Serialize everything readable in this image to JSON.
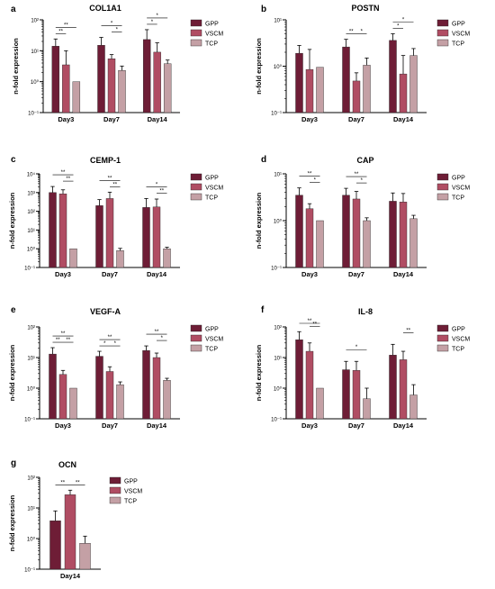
{
  "colors": {
    "GPP": "#6e1d36",
    "VSCM": "#b04d63",
    "TCP": "#c4a0a5"
  },
  "chart_data": [
    {
      "letter": "a",
      "title": "COL1A1",
      "type": "bar",
      "yscale": "log",
      "ylabel": "n-fold expression",
      "yticks": [
        {
          "value": 0.1,
          "label": "10⁻¹"
        },
        {
          "value": 1,
          "label": "10⁰"
        },
        {
          "value": 10,
          "label": "10¹"
        },
        {
          "value": 100,
          "label": "10²"
        }
      ],
      "ylim": [
        0.1,
        100
      ],
      "categories": [
        "Day3",
        "Day7",
        "Day14"
      ],
      "legend": [
        "GPP",
        "VSCM",
        "TCP"
      ],
      "series": [
        {
          "name": "GPP",
          "values": [
            14,
            15,
            23
          ],
          "errors": [
            24,
            27,
            48
          ]
        },
        {
          "name": "VSCM",
          "values": [
            3.5,
            5.5,
            9
          ],
          "errors": [
            10,
            7.5,
            18
          ]
        },
        {
          "name": "TCP",
          "values": [
            1,
            2.3,
            3.8
          ],
          "errors": [
            null,
            3.2,
            5
          ]
        }
      ],
      "annotations": [
        {
          "group": 0,
          "from": 0,
          "to": 1,
          "level": 1,
          "label": "**"
        },
        {
          "group": 0,
          "from": 0,
          "to": 2,
          "level": 2,
          "label": "**"
        },
        {
          "group": 1,
          "from": 0,
          "to": 2,
          "level": 2,
          "label": "*"
        },
        {
          "group": 1,
          "from": 1,
          "to": 2,
          "level": 1,
          "label": "*"
        },
        {
          "group": 2,
          "from": 0,
          "to": 1,
          "level": 1,
          "label": "*"
        },
        {
          "group": 2,
          "from": 0,
          "to": 2,
          "level": 2,
          "label": "*"
        }
      ]
    },
    {
      "letter": "b",
      "title": "POSTN",
      "type": "bar",
      "yscale": "log",
      "ylabel": "n-fold expression",
      "yticks": [
        {
          "value": 0.1,
          "label": "10⁻¹"
        },
        {
          "value": 1,
          "label": "10⁰"
        },
        {
          "value": 10,
          "label": "10¹"
        }
      ],
      "ylim": [
        0.1,
        10
      ],
      "categories": [
        "Day3",
        "Day7",
        "Day14"
      ],
      "legend": [
        "GPP",
        "VSCM",
        "TCP"
      ],
      "series": [
        {
          "name": "GPP",
          "values": [
            1.9,
            2.6,
            3.6
          ],
          "errors": [
            2.8,
            3.8,
            5
          ]
        },
        {
          "name": "VSCM",
          "values": [
            0.85,
            0.48,
            0.68
          ],
          "errors": [
            2.3,
            0.72,
            1.7
          ]
        },
        {
          "name": "TCP",
          "values": [
            0.95,
            1.05,
            1.7
          ],
          "errors": [
            null,
            1.5,
            2.4
          ]
        }
      ],
      "annotations": [
        {
          "group": 1,
          "from": 0,
          "to": 1,
          "level": 1,
          "label": "**"
        },
        {
          "group": 1,
          "from": 1,
          "to": 2,
          "level": 1,
          "label": "*"
        },
        {
          "group": 2,
          "from": 0,
          "to": 1,
          "level": 1,
          "label": "*"
        },
        {
          "group": 2,
          "from": 0,
          "to": 2,
          "level": 2,
          "label": "*"
        }
      ]
    },
    {
      "letter": "c",
      "title": "CEMP-1",
      "type": "bar",
      "yscale": "log",
      "ylabel": "n-fold expression",
      "yticks": [
        {
          "value": 0.1,
          "label": "10⁻¹"
        },
        {
          "value": 1,
          "label": "10⁰"
        },
        {
          "value": 10,
          "label": "10¹"
        },
        {
          "value": 100,
          "label": "10²"
        },
        {
          "value": 1000,
          "label": "10³"
        },
        {
          "value": 10000,
          "label": "10⁴"
        }
      ],
      "ylim": [
        0.1,
        10000
      ],
      "categories": [
        "Day3",
        "Day7",
        "Day14"
      ],
      "legend": [
        "GPP",
        "VSCM",
        "TCP"
      ],
      "series": [
        {
          "name": "GPP",
          "values": [
            1000,
            200,
            160
          ],
          "errors": [
            2100,
            420,
            480
          ]
        },
        {
          "name": "VSCM",
          "values": [
            850,
            480,
            170
          ],
          "errors": [
            1400,
            1050,
            450
          ]
        },
        {
          "name": "TCP",
          "values": [
            1,
            0.8,
            1
          ],
          "errors": [
            null,
            1.05,
            1.2
          ]
        }
      ],
      "annotations": [
        {
          "group": 0,
          "from": 0,
          "to": 2,
          "level": 2,
          "label": "**"
        },
        {
          "group": 0,
          "from": 1,
          "to": 2,
          "level": 1,
          "label": "**"
        },
        {
          "group": 1,
          "from": 0,
          "to": 2,
          "level": 2,
          "label": "**"
        },
        {
          "group": 1,
          "from": 1,
          "to": 2,
          "level": 1,
          "label": "**"
        },
        {
          "group": 2,
          "from": 0,
          "to": 2,
          "level": 2,
          "label": "*"
        },
        {
          "group": 2,
          "from": 1,
          "to": 2,
          "level": 1,
          "label": "**"
        }
      ]
    },
    {
      "letter": "d",
      "title": "CAP",
      "type": "bar",
      "yscale": "log",
      "ylabel": "n-fold expression",
      "yticks": [
        {
          "value": 0.1,
          "label": "10⁻¹"
        },
        {
          "value": 1,
          "label": "10⁰"
        },
        {
          "value": 10,
          "label": "10¹"
        }
      ],
      "ylim": [
        0.1,
        10
      ],
      "categories": [
        "Day3",
        "Day7",
        "Day14"
      ],
      "legend": [
        "GPP",
        "VSCM",
        "TCP"
      ],
      "series": [
        {
          "name": "GPP",
          "values": [
            3.5,
            3.5,
            2.6
          ],
          "errors": [
            5,
            4.9,
            3.9
          ]
        },
        {
          "name": "VSCM",
          "values": [
            1.8,
            2.9,
            2.5
          ],
          "errors": [
            2.3,
            4.2,
            3.8
          ]
        },
        {
          "name": "TCP",
          "values": [
            1,
            1,
            1.1
          ],
          "errors": [
            null,
            1.15,
            1.3
          ]
        }
      ],
      "annotations": [
        {
          "group": 0,
          "from": 0,
          "to": 2,
          "level": 2,
          "label": "**"
        },
        {
          "group": 0,
          "from": 1,
          "to": 2,
          "level": 1,
          "label": "*"
        },
        {
          "group": 1,
          "from": 0,
          "to": 2,
          "level": 2,
          "label": "**"
        },
        {
          "group": 1,
          "from": 1,
          "to": 2,
          "level": 1,
          "label": "*"
        }
      ]
    },
    {
      "letter": "e",
      "title": "VEGF-A",
      "type": "bar",
      "yscale": "log",
      "ylabel": "n-fold expression",
      "yticks": [
        {
          "value": 0.1,
          "label": "10⁻¹"
        },
        {
          "value": 1,
          "label": "10⁰"
        },
        {
          "value": 10,
          "label": "10¹"
        },
        {
          "value": 100,
          "label": "10²"
        }
      ],
      "ylim": [
        0.1,
        100
      ],
      "categories": [
        "Day3",
        "Day7",
        "Day14"
      ],
      "legend": [
        "GPP",
        "VSCM",
        "TCP"
      ],
      "series": [
        {
          "name": "GPP",
          "values": [
            13,
            11,
            17
          ],
          "errors": [
            21,
            16,
            24
          ]
        },
        {
          "name": "VSCM",
          "values": [
            2.8,
            3.5,
            10
          ],
          "errors": [
            3.8,
            5,
            14
          ]
        },
        {
          "name": "TCP",
          "values": [
            1,
            1.3,
            1.8
          ],
          "errors": [
            null,
            1.6,
            2.1
          ]
        }
      ],
      "annotations": [
        {
          "group": 0,
          "from": 0,
          "to": 1,
          "level": 1,
          "label": "**"
        },
        {
          "group": 0,
          "from": 0,
          "to": 2,
          "level": 2,
          "label": "**"
        },
        {
          "group": 0,
          "from": 1,
          "to": 2,
          "level": 1,
          "label": "**"
        },
        {
          "group": 1,
          "from": 0,
          "to": 1,
          "level": 1,
          "label": "*"
        },
        {
          "group": 1,
          "from": 0,
          "to": 2,
          "level": 2,
          "label": "**"
        },
        {
          "group": 1,
          "from": 1,
          "to": 2,
          "level": 1,
          "label": "*"
        },
        {
          "group": 2,
          "from": 0,
          "to": 2,
          "level": 2,
          "label": "**"
        },
        {
          "group": 2,
          "from": 1,
          "to": 2,
          "level": 1,
          "label": "*"
        }
      ]
    },
    {
      "letter": "f",
      "title": "IL-8",
      "type": "bar",
      "yscale": "log",
      "ylabel": "n-fold expression",
      "yticks": [
        {
          "value": 0.1,
          "label": "10⁻¹"
        },
        {
          "value": 1,
          "label": "10⁰"
        },
        {
          "value": 10,
          "label": "10¹"
        },
        {
          "value": 100,
          "label": "10²"
        }
      ],
      "ylim": [
        0.1,
        100
      ],
      "categories": [
        "Day3",
        "Day7",
        "Day14"
      ],
      "legend": [
        "GPP",
        "VSCM",
        "TCP"
      ],
      "series": [
        {
          "name": "GPP",
          "values": [
            38,
            4,
            12
          ],
          "errors": [
            70,
            7.5,
            27
          ]
        },
        {
          "name": "VSCM",
          "values": [
            16,
            3.8,
            8.5
          ],
          "errors": [
            30,
            7.5,
            16
          ]
        },
        {
          "name": "TCP",
          "values": [
            1,
            0.45,
            0.6
          ],
          "errors": [
            null,
            1,
            1.3
          ]
        }
      ],
      "annotations": [
        {
          "group": 0,
          "from": 0,
          "to": 2,
          "level": 2,
          "label": "**"
        },
        {
          "group": 0,
          "from": 1,
          "to": 2,
          "level": 1,
          "label": "**"
        },
        {
          "group": 1,
          "from": 0,
          "to": 2,
          "level": 2,
          "label": "*"
        },
        {
          "group": 2,
          "from": 1,
          "to": 2,
          "level": 2,
          "label": "**"
        }
      ]
    },
    {
      "letter": "g",
      "title": "OCN",
      "type": "bar",
      "yscale": "log",
      "ylabel": "n-fold expression",
      "yticks": [
        {
          "value": 0.1,
          "label": "10⁻¹"
        },
        {
          "value": 1,
          "label": "10⁰"
        },
        {
          "value": 10,
          "label": "10¹"
        },
        {
          "value": 100,
          "label": "10²"
        }
      ],
      "ylim": [
        0.1,
        100
      ],
      "categories": [
        "Day14"
      ],
      "legend": [
        "GPP",
        "VSCM",
        "TCP"
      ],
      "series": [
        {
          "name": "GPP",
          "values": [
            3.8
          ],
          "errors": [
            8
          ]
        },
        {
          "name": "VSCM",
          "values": [
            27
          ],
          "errors": [
            38
          ]
        },
        {
          "name": "TCP",
          "values": [
            0.7
          ],
          "errors": [
            1.2
          ]
        }
      ],
      "annotations": [
        {
          "group": 0,
          "from": 0,
          "to": 1,
          "level": 1,
          "label": "**"
        },
        {
          "group": 0,
          "from": 1,
          "to": 2,
          "level": 1,
          "label": "**"
        }
      ]
    }
  ]
}
